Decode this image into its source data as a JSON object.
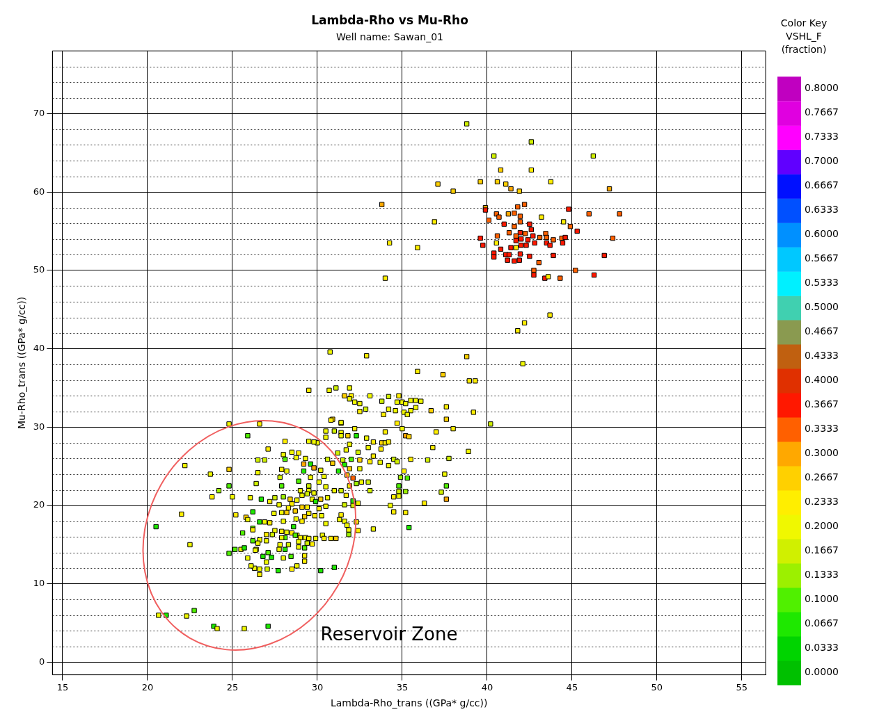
{
  "chart_data": {
    "type": "scatter",
    "title": "Lambda-Rho vs Mu-Rho",
    "subtitle": "Well name: Sawan_01",
    "xlabel": "Lambda-Rho_trans ((GPa* g/cc))",
    "ylabel": "Mu-Rho_trans ((GPa* g/cc))",
    "clabel": "Color Key\nVSHL_F\n(fraction)",
    "xlim": [
      14.4,
      56.4
    ],
    "ylim": [
      -1.6,
      78
    ],
    "xticks": [
      15,
      20,
      25,
      30,
      35,
      40,
      45,
      50,
      55
    ],
    "yticks": [
      0,
      {
        "value": 2,
        "label": null
      },
      {
        "value": 4,
        "label": null
      },
      {
        "value": 6,
        "label": null
      },
      {
        "value": 8,
        "label": null
      },
      10,
      {
        "value": 12,
        "label": null
      },
      {
        "value": 14,
        "label": null
      },
      {
        "value": 16,
        "label": null
      },
      {
        "value": 18,
        "label": null
      },
      20,
      {
        "value": 22,
        "label": null
      },
      {
        "value": 24,
        "label": null
      },
      {
        "value": 26,
        "label": null
      },
      {
        "value": 28,
        "label": null
      },
      30,
      {
        "value": 32,
        "label": null
      },
      {
        "value": 34,
        "label": null
      },
      {
        "value": 36,
        "label": null
      },
      {
        "value": 38,
        "label": null
      },
      40,
      {
        "value": 42,
        "label": null
      },
      {
        "value": 44,
        "label": null
      },
      {
        "value": 46,
        "label": null
      },
      {
        "value": 48,
        "label": null
      },
      50,
      {
        "value": 52,
        "label": null
      },
      {
        "value": 54,
        "label": null
      },
      {
        "value": 56,
        "label": null
      },
      {
        "value": 58,
        "label": null
      },
      60,
      {
        "value": 62,
        "label": null
      },
      {
        "value": 64,
        "label": null
      },
      {
        "value": 66,
        "label": null
      },
      {
        "value": 68,
        "label": null
      },
      70,
      {
        "value": 72,
        "label": null
      },
      {
        "value": 74,
        "label": null
      },
      {
        "value": 76,
        "label": null
      }
    ],
    "clim": [
      -0.0167,
      0.8167
    ],
    "cticks": [
      {
        "value": 0,
        "label": "0.0000"
      },
      {
        "value": 0.0333,
        "label": "0.0333"
      },
      {
        "value": 0.0667,
        "label": "0.0667"
      },
      {
        "value": 0.1,
        "label": "0.1000"
      },
      {
        "value": 0.1333,
        "label": "0.1333"
      },
      {
        "value": 0.1667,
        "label": "0.1667"
      },
      {
        "value": 0.2,
        "label": "0.2000"
      },
      {
        "value": 0.2333,
        "label": "0.2333"
      },
      {
        "value": 0.2667,
        "label": "0.2667"
      },
      {
        "value": 0.3,
        "label": "0.3000"
      },
      {
        "value": 0.3333,
        "label": "0.3333"
      },
      {
        "value": 0.3667,
        "label": "0.3667"
      },
      {
        "value": 0.4,
        "label": "0.4000"
      },
      {
        "value": 0.4333,
        "label": "0.4333"
      },
      {
        "value": 0.4667,
        "label": "0.4667"
      },
      {
        "value": 0.5,
        "label": "0.5000"
      },
      {
        "value": 0.5333,
        "label": "0.5333"
      },
      {
        "value": 0.5667,
        "label": "0.5667"
      },
      {
        "value": 0.6,
        "label": "0.6000"
      },
      {
        "value": 0.6333,
        "label": "0.6333"
      },
      {
        "value": 0.6667,
        "label": "0.6667"
      },
      {
        "value": 0.7,
        "label": "0.7000"
      },
      {
        "value": 0.7333,
        "label": "0.7333"
      },
      {
        "value": 0.7667,
        "label": "0.7667"
      },
      {
        "value": 0.8,
        "label": "0.8000"
      }
    ],
    "grid": true,
    "legend": false,
    "marker": "square",
    "annotations": [
      "Reservoir Zone"
    ],
    "x": [
      38.8,
      42.6,
      40.4,
      46.25,
      40.8,
      42.6,
      39.6,
      40.6,
      43.75,
      37.1,
      41.1,
      41.4,
      41.9,
      38.0,
      47.2,
      33.8,
      39.9,
      39.9,
      41.8,
      42.2,
      44.8,
      46.0,
      47.8,
      40.55,
      40.7,
      41.25,
      41.6,
      41.95,
      43.2,
      40.1,
      36.9,
      41.95,
      44.5,
      41.0,
      42.5,
      44.9,
      41.6,
      42.6,
      45.3,
      41.3,
      41.95,
      42.25,
      41.7,
      40.6,
      42.7,
      43.45,
      39.6,
      43.1,
      43.5,
      44.4,
      44.6,
      47.4,
      43.9,
      42.0,
      42.4,
      41.7,
      42.8,
      43.5,
      44.45,
      39.75,
      40.55,
      42.3,
      42.0,
      43.7,
      41.4,
      41.7,
      40.8,
      41.95,
      40.4,
      40.4,
      41.1,
      41.3,
      41.2,
      41.6,
      41.9,
      42.5,
      43.9,
      46.9,
      43.05,
      42.75,
      42.75,
      45.2,
      46.3,
      43.4,
      43.6,
      44.3,
      34.0,
      34.25,
      35.9,
      43.7,
      42.2,
      41.8,
      42.1,
      30.75,
      32.9,
      38.8,
      35.9,
      37.4,
      38.95,
      39.3,
      29.5,
      30.7,
      31.1,
      31.9,
      31.6,
      32.0,
      32.2,
      32.5,
      33.1,
      31.9,
      32.85,
      32.5,
      33.8,
      34.2,
      34.8,
      34.7,
      35.0,
      35.2,
      35.5,
      35.8,
      36.1,
      35.8,
      35.5,
      34.2,
      33.9,
      34.6,
      35.1,
      35.3,
      36.7,
      37.6,
      39.2,
      37.6,
      40.2,
      30.9,
      31.4,
      34.7,
      34.0,
      35.0,
      37.0,
      38.0,
      35.2,
      35.4,
      30.5,
      31.0,
      31.4,
      32.2,
      31.8,
      32.3,
      32.9,
      33.3,
      33.8,
      34.0,
      34.2,
      33.75,
      33.0,
      36.8,
      38.9,
      33.3,
      35.5,
      36.5,
      37.75,
      34.5,
      34.7,
      34.2,
      33.7,
      33.1,
      35.1,
      34.9,
      35.3,
      37.5,
      37.6,
      37.3,
      37.6,
      36.3,
      34.8,
      34.8,
      35.2,
      34.5,
      34.8,
      34.3,
      34.5,
      35.2,
      35.4,
      33.3,
      30.5,
      29.5,
      30.0,
      31.9,
      31.7,
      31.2,
      32.4,
      32.0,
      32.5,
      31.5,
      31.6,
      30.9,
      30.6,
      31.9,
      32.5,
      31.25,
      31.75,
      32.1,
      32.6,
      33.0,
      32.3,
      33.1,
      31.9,
      31.7,
      32.1,
      32.1,
      32.4,
      31.6,
      31.4,
      30.2,
      26.6,
      30.8,
      31.4,
      31.4,
      28.1,
      29.8,
      27.1,
      28.5,
      28.9,
      28.0,
      28.75,
      29.3,
      26.5,
      26.9,
      28.1,
      29.2,
      29.6,
      29.8,
      27.9,
      28.2,
      29.2,
      26.5,
      27.8,
      29.6,
      30.4,
      28.9,
      27.9,
      30.1,
      26.4,
      29.5,
      30.5,
      29.0,
      29.5,
      29.8,
      29.1,
      29.4,
      31.0,
      31.4,
      26.7,
      27.5,
      28.0,
      28.4,
      27.2,
      28.8,
      29.7,
      30.2,
      30.6,
      29.9,
      27.75,
      28.5,
      28.3,
      29.1,
      29.4,
      30.1,
      30.5,
      27.45,
      27.9,
      28.2,
      28.7,
      29.5,
      29.25,
      29.85,
      30.25,
      28.75,
      29.1,
      31.3,
      31.6,
      32.3,
      31.75,
      31.85,
      31.85,
      32.4,
      30.5,
      28.0,
      26.6,
      26.9,
      27.2,
      26.2,
      28.6,
      27.5,
      27.9,
      28.2,
      27.35,
      27.0,
      28.5,
      28.8,
      29.0,
      29.3,
      29.5,
      29.9,
      30.3,
      30.4,
      30.8,
      31.1,
      28.7,
      28.1,
      27.9,
      27.0,
      26.6,
      28.9,
      29.4,
      29.7,
      26.5,
      27.8,
      28.3,
      28.9,
      28.1,
      27.75,
      29.25,
      27.1,
      26.8,
      26.4,
      27.3,
      28.0,
      28.45,
      29.25,
      29.25,
      28.8,
      28.5,
      27.0,
      26.6,
      27.05,
      26.3,
      27.7,
      26.6,
      30.2,
      31.0,
      24.8,
      25.9,
      22.2,
      24.8,
      23.7,
      24.8,
      24.2,
      23.8,
      25.0,
      26.05,
      22.0,
      20.5,
      25.2,
      26.2,
      25.8,
      25.9,
      26.2,
      25.6,
      22.5,
      26.2,
      25.15,
      25.5,
      24.8,
      25.7,
      26.35,
      25.9,
      26.1,
      20.65,
      21.1,
      22.3,
      22.75,
      23.9,
      24.1,
      25.7,
      27.1
    ],
    "values": [
      68.7,
      66.4,
      64.6,
      64.6,
      62.8,
      62.8,
      61.3,
      61.3,
      61.3,
      61.0,
      61.0,
      60.4,
      60.1,
      60.1,
      60.4,
      58.4,
      58.0,
      57.7,
      58.1,
      58.4,
      57.8,
      57.2,
      57.2,
      57.2,
      56.8,
      57.2,
      57.3,
      56.9,
      56.8,
      56.4,
      56.2,
      56.2,
      56.2,
      55.9,
      55.9,
      55.6,
      55.6,
      55.2,
      55.0,
      54.8,
      54.8,
      54.7,
      54.4,
      54.4,
      54.4,
      54.7,
      54.1,
      54.2,
      54.2,
      54.1,
      54.2,
      54.1,
      53.9,
      54.0,
      53.9,
      53.8,
      53.5,
      53.5,
      53.5,
      53.2,
      53.5,
      53.2,
      53.2,
      53.2,
      52.9,
      52.9,
      52.7,
      52.1,
      52.2,
      51.7,
      52.0,
      52.0,
      51.3,
      51.2,
      51.3,
      51.8,
      51.9,
      51.9,
      51.0,
      50.0,
      49.4,
      50.0,
      49.4,
      49.0,
      49.2,
      49.0,
      49.0,
      53.5,
      52.9,
      44.3,
      43.3,
      42.3,
      38.1,
      39.6,
      39.1,
      39.0,
      37.1,
      36.7,
      35.9,
      35.9,
      34.7,
      34.7,
      35.0,
      35.0,
      34.0,
      34.0,
      33.2,
      33.0,
      34.0,
      33.6,
      32.3,
      32.0,
      33.3,
      33.9,
      34.0,
      33.2,
      33.2,
      33.0,
      33.4,
      33.4,
      33.3,
      32.5,
      32.1,
      32.3,
      31.6,
      32.1,
      31.9,
      31.6,
      32.1,
      32.6,
      31.9,
      31.0,
      30.4,
      31.0,
      30.5,
      30.5,
      29.4,
      29.8,
      29.4,
      29.8,
      28.9,
      28.8,
      29.5,
      29.5,
      29.3,
      29.8,
      28.9,
      28.9,
      28.6,
      28.1,
      28.0,
      28.0,
      28.1,
      27.2,
      27.4,
      27.4,
      26.9,
      26.3,
      25.9,
      25.8,
      26.0,
      25.9,
      25.6,
      25.1,
      25.5,
      25.6,
      24.4,
      23.6,
      23.5,
      24.0,
      22.5,
      21.7,
      20.8,
      20.3,
      22.5,
      21.8,
      21.8,
      21.1,
      21.2,
      20.0,
      19.2,
      19.1,
      17.2,
      17.0,
      28.7,
      28.2,
      28.0,
      27.8,
      27.1,
      26.7,
      26.8,
      25.9,
      25.8,
      25.8,
      25.2,
      25.4,
      25.9,
      24.7,
      24.7,
      24.4,
      23.9,
      23.5,
      23.0,
      23.0,
      22.8,
      21.9,
      22.5,
      21.3,
      20.6,
      20.0,
      20.3,
      20.1,
      18.8,
      24.5,
      30.4,
      30.9,
      30.6,
      28.9,
      28.2,
      28.1,
      27.2,
      26.8,
      26.7,
      26.5,
      26.1,
      26.0,
      25.8,
      25.8,
      25.9,
      25.3,
      25.3,
      24.8,
      24.6,
      24.4,
      24.4,
      24.2,
      23.6,
      23.6,
      23.7,
      23.1,
      22.5,
      23.0,
      22.8,
      22.5,
      22.4,
      21.9,
      21.9,
      21.6,
      21.3,
      21.5,
      21.9,
      21.9,
      20.8,
      21.0,
      21.1,
      20.8,
      20.5,
      20.7,
      20.8,
      20.8,
      21.0,
      20.5,
      20.1,
      20.2,
      19.7,
      19.8,
      19.8,
      19.6,
      19.9,
      19.0,
      19.1,
      19.1,
      19.3,
      19.0,
      18.6,
      18.7,
      18.7,
      18.3,
      18.0,
      18.2,
      18.0,
      17.9,
      17.5,
      16.9,
      16.3,
      16.8,
      17.7,
      18.0,
      17.9,
      17.9,
      17.8,
      17.1,
      17.3,
      16.8,
      16.7,
      16.6,
      16.3,
      16.3,
      16.5,
      16.2,
      15.9,
      15.9,
      15.8,
      15.8,
      16.2,
      15.8,
      15.8,
      15.8,
      16.2,
      15.9,
      15.9,
      15.5,
      15.6,
      15.4,
      15.2,
      15.1,
      15.2,
      15.0,
      15.0,
      14.7,
      14.4,
      14.4,
      14.6,
      14.0,
      13.5,
      14.4,
      13.4,
      13.3,
      13.5,
      13.6,
      12.9,
      12.3,
      11.9,
      12.8,
      11.9,
      11.9,
      12.0,
      11.7,
      11.2,
      11.7,
      12.1,
      30.4,
      28.9,
      25.1,
      24.6,
      24.0,
      22.5,
      21.9,
      21.1,
      21.1,
      21.0,
      18.9,
      17.3,
      18.8,
      19.2,
      18.5,
      18.2,
      16.9,
      16.5,
      15.0,
      15.5,
      14.4,
      14.4,
      13.9,
      14.6,
      14.3,
      13.3,
      12.3,
      6.0,
      6.0,
      5.9,
      6.6,
      4.6,
      4.3,
      4.3,
      4.6
    ],
    "cvalues": [
      0.17,
      0.17,
      0.17,
      0.17,
      0.27,
      0.23,
      0.27,
      0.27,
      0.23,
      0.27,
      0.27,
      0.3,
      0.27,
      0.27,
      0.3,
      0.3,
      0.3,
      0.37,
      0.33,
      0.33,
      0.37,
      0.33,
      0.33,
      0.33,
      0.33,
      0.3,
      0.33,
      0.33,
      0.23,
      0.33,
      0.23,
      0.33,
      0.23,
      0.37,
      0.37,
      0.33,
      0.33,
      0.37,
      0.37,
      0.33,
      0.37,
      0.33,
      0.33,
      0.33,
      0.37,
      0.33,
      0.37,
      0.33,
      0.33,
      0.33,
      0.37,
      0.33,
      0.33,
      0.37,
      0.37,
      0.37,
      0.37,
      0.37,
      0.37,
      0.37,
      0.23,
      0.37,
      0.37,
      0.37,
      0.37,
      0.23,
      0.37,
      0.37,
      0.37,
      0.37,
      0.37,
      0.37,
      0.37,
      0.37,
      0.37,
      0.37,
      0.37,
      0.37,
      0.33,
      0.33,
      0.37,
      0.33,
      0.37,
      0.37,
      0.23,
      0.33,
      0.23,
      0.23,
      0.23,
      0.23,
      0.23,
      0.23,
      0.2,
      0.2,
      0.23,
      0.27,
      0.23,
      0.27,
      0.23,
      0.23,
      0.23,
      0.2,
      0.17,
      0.2,
      0.27,
      0.23,
      0.2,
      0.2,
      0.2,
      0.2,
      0.17,
      0.23,
      0.17,
      0.17,
      0.23,
      0.2,
      0.2,
      0.2,
      0.2,
      0.2,
      0.2,
      0.2,
      0.2,
      0.2,
      0.23,
      0.2,
      0.2,
      0.2,
      0.27,
      0.23,
      0.23,
      0.27,
      0.17,
      0.27,
      0.2,
      0.23,
      0.23,
      0.2,
      0.23,
      0.23,
      0.3,
      0.27,
      0.2,
      0.17,
      0.2,
      0.23,
      0.27,
      0.07,
      0.2,
      0.23,
      0.27,
      0.23,
      0.23,
      0.23,
      0.2,
      0.23,
      0.2,
      0.23,
      0.23,
      0.17,
      0.17,
      0.17,
      0.17,
      0.2,
      0.2,
      0.23,
      0.23,
      0.13,
      0.1,
      0.2,
      0.1,
      0.17,
      0.3,
      0.23,
      0.1,
      0.17,
      0.13,
      0.23,
      0.2,
      0.2,
      0.23,
      0.23,
      0.07,
      0.2,
      0.2,
      0.2,
      0.2,
      0.2,
      0.2,
      0.17,
      0.17,
      0.1,
      0.27,
      0.17,
      0.07,
      0.27,
      0.17,
      0.27,
      0.2,
      0.07,
      0.27,
      0.33,
      0.2,
      0.17,
      0.13,
      0.17,
      0.23,
      0.23,
      0.07,
      0.17,
      0.2,
      0.17,
      0.23,
      0.2,
      0.23,
      0.23,
      0.2,
      0.2,
      0.23,
      0.2,
      0.23,
      0.2,
      0.23,
      0.2,
      0.2,
      0.2,
      0.17,
      0.17,
      0.1,
      0.3,
      0.07,
      0.3,
      0.23,
      0.2,
      0.07,
      0.2,
      0.17,
      0.2,
      0.2,
      0.1,
      0.1,
      0.2,
      0.17,
      0.17,
      0.2,
      0.2,
      0.2,
      0.2,
      0.2,
      0.17,
      0.2,
      0.17,
      0.07,
      0.17,
      0.13,
      0.27,
      0.23,
      0.2,
      0.2,
      0.27,
      0.2,
      0.07,
      0.2,
      0.23,
      0.23,
      0.27,
      0.23,
      0.23,
      0.2,
      0.2,
      0.2,
      0.27,
      0.27,
      0.23,
      0.27,
      0.23,
      0.2,
      0.2,
      0.23,
      0.2,
      0.2,
      0.23,
      0.2,
      0.2,
      0.13,
      0.23,
      0.2,
      0.2,
      0.07,
      0.2,
      0.23,
      0.1,
      0.07,
      0.2,
      0.23,
      0.2,
      0.17,
      0.23,
      0.23,
      0.2,
      0.23,
      0.2,
      0.23,
      0.2,
      0.2,
      0.23,
      0.23,
      0.27,
      0.1,
      0.1,
      0.2,
      0.2,
      0.2,
      0.2,
      0.17,
      0.23,
      0.2,
      0.2,
      0.17,
      0.2,
      0.07,
      0.2,
      0.1,
      0.1,
      0.07,
      0.2,
      0.07,
      0.2,
      0.1,
      0.23,
      0.23,
      0.2,
      0.23,
      0.2,
      0.2,
      0.17,
      0.2,
      0.07,
      0.23,
      0.07,
      0.07,
      0.2,
      0.1,
      0.2,
      0.27,
      0.2,
      0.1,
      0.13,
      0.23,
      0.2,
      0.2,
      0.23,
      0.07,
      0.23,
      0.07,
      0.27,
      0.2,
      0.23,
      0.1,
      0.2,
      0.1,
      0.1,
      0.2,
      0.1,
      0.07,
      0.2,
      0.2,
      0.2,
      0.2,
      0.07,
      0.2,
      0.1,
      0.07,
      0.2,
      0.2,
      0.07
    ]
  }
}
